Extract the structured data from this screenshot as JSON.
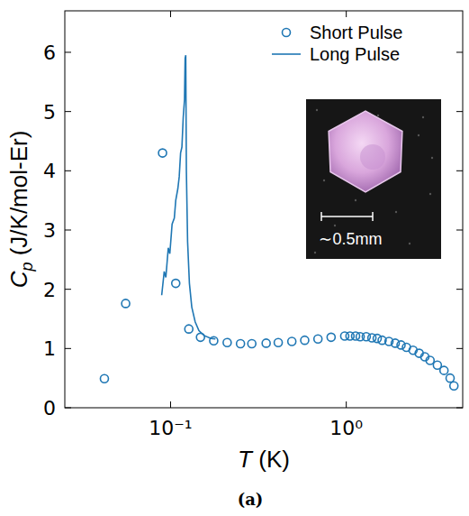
{
  "chart_data": {
    "type": "scatter",
    "xlabel": "T (K)",
    "ylabel": "Cp (J/K/mol-Er)",
    "caption": "(a)",
    "annotations": [
      {
        "text": "∼0.5mm"
      }
    ],
    "log": "x",
    "legend": "upper right",
    "grid": false,
    "xlim": [
      0.025,
      4.6
    ],
    "ylim": [
      0,
      6.7
    ],
    "xticks": [
      {
        "value": 0.1,
        "label": "10⁻¹"
      },
      {
        "value": 1,
        "label": "10⁰"
      }
    ],
    "yticks": [
      0,
      1,
      2,
      3,
      4,
      5,
      6
    ],
    "series": [
      {
        "name": "Short Pulse",
        "type": "scatter",
        "marker": "circle",
        "color": "#1f77b4",
        "x": [
          0.042,
          0.0555,
          0.09,
          0.107,
          0.127,
          0.148,
          0.176,
          0.21,
          0.25,
          0.29,
          0.35,
          0.41,
          0.49,
          0.58,
          0.69,
          0.82,
          0.98,
          1.05,
          1.13,
          1.2,
          1.3,
          1.4,
          1.5,
          1.6,
          1.75,
          1.9,
          2.05,
          2.2,
          2.4,
          2.6,
          2.8,
          3.0,
          3.3,
          3.6,
          3.9,
          4.1
        ],
        "values": [
          0.49,
          1.76,
          4.3,
          2.1,
          1.33,
          1.19,
          1.13,
          1.1,
          1.08,
          1.08,
          1.09,
          1.1,
          1.12,
          1.14,
          1.16,
          1.19,
          1.21,
          1.21,
          1.21,
          1.2,
          1.2,
          1.18,
          1.17,
          1.14,
          1.12,
          1.09,
          1.06,
          1.02,
          0.97,
          0.92,
          0.86,
          0.8,
          0.72,
          0.63,
          0.5,
          0.37
        ]
      },
      {
        "name": "Long Pulse",
        "type": "line",
        "line_style": "solid",
        "color": "#1f77b4",
        "x": [
          0.089,
          0.092,
          0.094,
          0.097,
          0.099,
          0.102,
          0.105,
          0.107,
          0.11,
          0.112,
          0.114,
          0.116,
          0.118,
          0.12,
          0.121,
          0.122,
          0.123,
          0.125,
          0.128,
          0.132,
          0.138,
          0.145,
          0.155,
          0.17,
          0.18
        ],
        "values": [
          1.9,
          2.3,
          2.2,
          2.7,
          2.6,
          3.1,
          3.2,
          3.5,
          3.7,
          3.9,
          4.3,
          4.4,
          4.9,
          5.2,
          5.9,
          5.95,
          4.0,
          2.8,
          2.1,
          1.7,
          1.45,
          1.3,
          1.22,
          1.17,
          1.16
        ]
      }
    ]
  }
}
